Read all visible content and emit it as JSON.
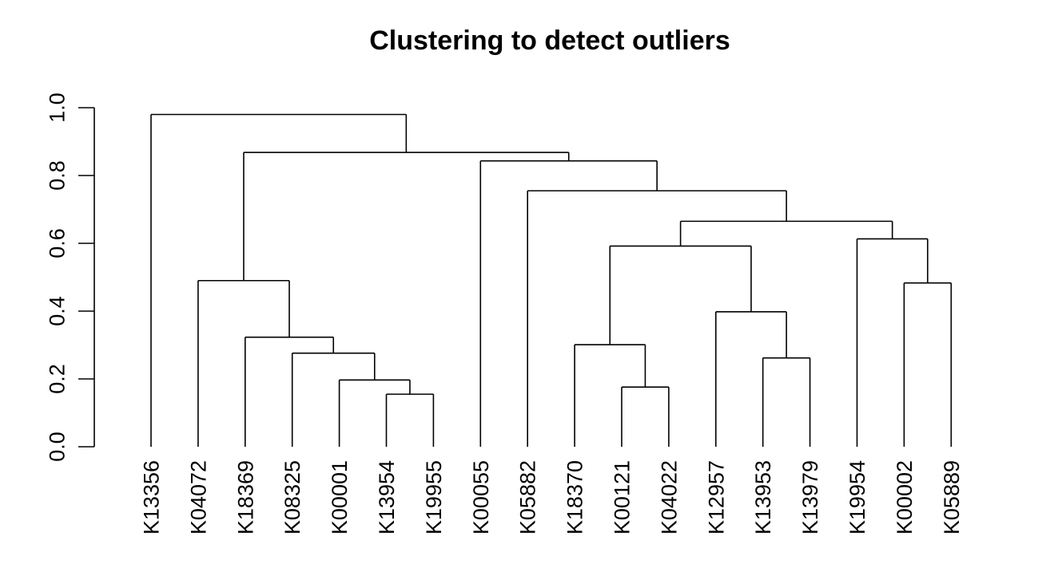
{
  "chart_data": {
    "type": "dendrogram",
    "title": "Clustering to detect outliers",
    "xlabel": "",
    "ylabel": "",
    "ylim": [
      0,
      1.0
    ],
    "y_ticks": [
      "0.0",
      "0.2",
      "0.4",
      "0.6",
      "0.8",
      "1.0"
    ],
    "y_tick_values": [
      0,
      0.2,
      0.4,
      0.6,
      0.8,
      1.0
    ],
    "grid": false,
    "leaves": [
      "K13356",
      "K04072",
      "K18369",
      "K08325",
      "K00001",
      "K13954",
      "K19955",
      "K00055",
      "K05882",
      "K18370",
      "K00121",
      "K04022",
      "K12957",
      "K13953",
      "K13979",
      "K19954",
      "K00002",
      "K05889"
    ],
    "merges": [
      {
        "id": "n1",
        "left": "K13954",
        "right": "K19955",
        "height": 0.155
      },
      {
        "id": "n2",
        "left": "K00001",
        "right": "n1",
        "height": 0.197
      },
      {
        "id": "n3",
        "left": "K08325",
        "right": "n2",
        "height": 0.276
      },
      {
        "id": "n4",
        "left": "K18369",
        "right": "n3",
        "height": 0.323
      },
      {
        "id": "n5",
        "left": "K04072",
        "right": "n4",
        "height": 0.49
      },
      {
        "id": "n6",
        "left": "K00121",
        "right": "K04022",
        "height": 0.176
      },
      {
        "id": "n7",
        "left": "K18370",
        "right": "n6",
        "height": 0.301
      },
      {
        "id": "n8",
        "left": "K13953",
        "right": "K13979",
        "height": 0.262
      },
      {
        "id": "n9",
        "left": "K12957",
        "right": "n8",
        "height": 0.398
      },
      {
        "id": "n10",
        "left": "n7",
        "right": "n9",
        "height": 0.592
      },
      {
        "id": "n11",
        "left": "K00002",
        "right": "K05889",
        "height": 0.483
      },
      {
        "id": "n12",
        "left": "K19954",
        "right": "n11",
        "height": 0.613
      },
      {
        "id": "n13",
        "left": "n10",
        "right": "n12",
        "height": 0.665
      },
      {
        "id": "n14",
        "left": "K05882",
        "right": "n13",
        "height": 0.755
      },
      {
        "id": "n15",
        "left": "K00055",
        "right": "n14",
        "height": 0.843
      },
      {
        "id": "n16",
        "left": "n5",
        "right": "n15",
        "height": 0.868
      },
      {
        "id": "n17",
        "left": "K13356",
        "right": "n16",
        "height": 0.98
      }
    ]
  }
}
